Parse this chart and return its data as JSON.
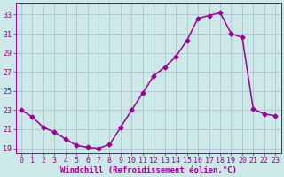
{
  "x": [
    0,
    1,
    2,
    3,
    4,
    5,
    6,
    7,
    8,
    9,
    10,
    11,
    12,
    13,
    14,
    15,
    16,
    17,
    18,
    19,
    20,
    21,
    22,
    23
  ],
  "y": [
    23.0,
    22.3,
    21.2,
    20.7,
    20.0,
    19.3,
    19.1,
    19.0,
    19.4,
    21.2,
    23.0,
    24.8,
    26.6,
    27.5,
    28.6,
    30.3,
    32.6,
    32.9,
    33.2,
    31.0,
    30.6,
    23.1,
    22.6,
    22.4
  ],
  "line_color": "#990099",
  "marker": "D",
  "marker_size": 2.5,
  "bg_color": "#cce8e8",
  "grid_color": "#aabbcc",
  "ylim": [
    18.5,
    34.2
  ],
  "yticks": [
    19,
    21,
    23,
    25,
    27,
    29,
    31,
    33
  ],
  "xlim": [
    -0.5,
    23.5
  ],
  "xlabel": "Windchill (Refroidissement éolien,°C)",
  "xlabel_fontsize": 6.5,
  "tick_fontsize": 6.0,
  "line_width": 1.1,
  "title": ""
}
